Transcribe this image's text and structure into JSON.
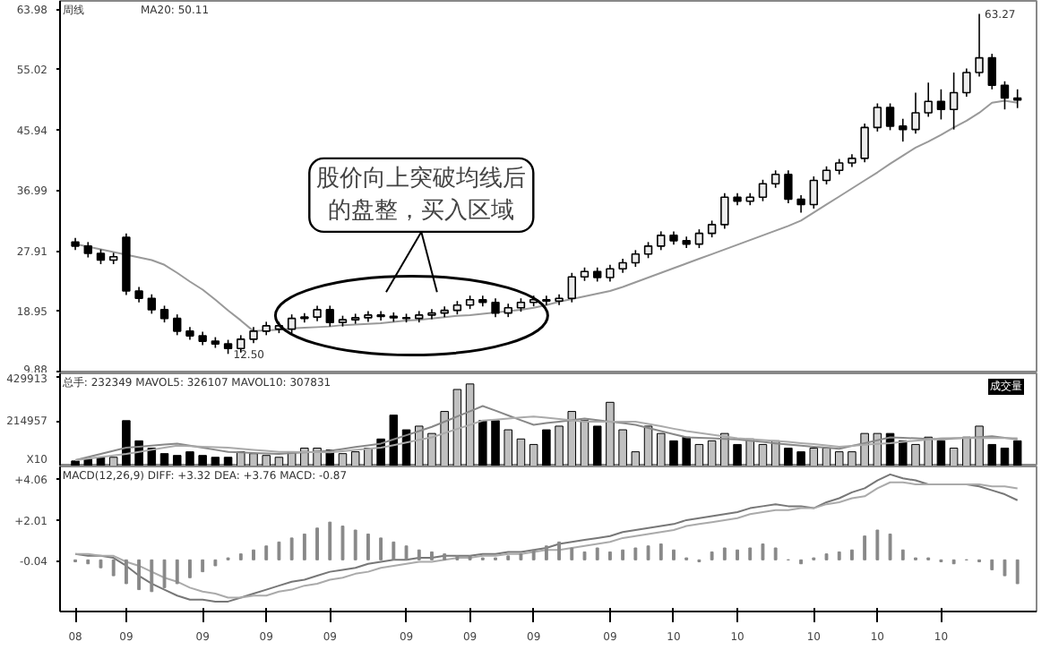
{
  "chart_data": [
    {
      "type": "candlestick",
      "title": "周线",
      "categories": [
        "08",
        null,
        null,
        null,
        "09",
        null,
        null,
        null,
        null,
        null,
        "09",
        null,
        null,
        null,
        null,
        "09",
        null,
        null,
        null,
        null,
        "09",
        null,
        null,
        null,
        null,
        null,
        "09",
        null,
        null,
        null,
        null,
        "09",
        null,
        null,
        null,
        null,
        "09",
        null,
        null,
        null,
        null,
        null,
        "09",
        null,
        null,
        null,
        null,
        "10",
        null,
        null,
        null,
        null,
        "10",
        null,
        null,
        null,
        null,
        null,
        "10",
        null,
        null,
        null,
        null,
        "10",
        null,
        null,
        null,
        null,
        "10",
        null,
        null,
        null,
        null,
        null,
        null
      ],
      "ohlc": [
        [
          29.2,
          29.8,
          28.0,
          28.6
        ],
        [
          28.6,
          29.2,
          26.9,
          27.5
        ],
        [
          27.5,
          28.1,
          25.9,
          26.5
        ],
        [
          26.5,
          27.6,
          25.9,
          27.0
        ],
        [
          29.9,
          30.5,
          21.3,
          21.9
        ],
        [
          21.9,
          22.5,
          20.2,
          20.8
        ],
        [
          20.8,
          21.4,
          18.5,
          19.1
        ],
        [
          19.1,
          19.7,
          17.2,
          17.8
        ],
        [
          17.8,
          18.4,
          15.3,
          15.9
        ],
        [
          15.9,
          16.5,
          14.6,
          15.2
        ],
        [
          15.2,
          15.8,
          13.8,
          14.4
        ],
        [
          14.4,
          15.0,
          13.4,
          14.0
        ],
        [
          14.0,
          14.6,
          12.5,
          13.3
        ],
        [
          13.3,
          15.3,
          12.7,
          14.7
        ],
        [
          14.7,
          16.5,
          14.1,
          15.9
        ],
        [
          15.9,
          17.3,
          15.3,
          16.7
        ],
        [
          16.2,
          17.3,
          15.6,
          16.7
        ],
        [
          16.2,
          18.4,
          15.6,
          17.8
        ],
        [
          17.8,
          18.6,
          17.2,
          18.0
        ],
        [
          18.0,
          19.7,
          17.4,
          19.1
        ],
        [
          19.1,
          19.7,
          16.6,
          17.2
        ],
        [
          17.2,
          18.2,
          16.6,
          17.6
        ],
        [
          17.6,
          18.5,
          17.0,
          17.9
        ],
        [
          17.9,
          18.9,
          17.3,
          18.3
        ],
        [
          18.3,
          18.9,
          17.5,
          18.1
        ],
        [
          18.1,
          18.7,
          17.3,
          17.9
        ],
        [
          17.9,
          18.5,
          17.2,
          17.8
        ],
        [
          17.8,
          18.9,
          17.2,
          18.3
        ],
        [
          18.3,
          19.2,
          17.7,
          18.6
        ],
        [
          18.6,
          19.6,
          18.0,
          19.0
        ],
        [
          19.0,
          20.4,
          18.4,
          19.8
        ],
        [
          19.8,
          21.2,
          19.2,
          20.6
        ],
        [
          20.6,
          21.2,
          19.6,
          20.2
        ],
        [
          20.2,
          20.8,
          18.0,
          18.6
        ],
        [
          18.6,
          20.0,
          18.0,
          19.4
        ],
        [
          19.4,
          20.8,
          18.8,
          20.2
        ],
        [
          20.2,
          21.2,
          19.6,
          20.6
        ],
        [
          20.6,
          21.2,
          19.8,
          20.4
        ],
        [
          20.4,
          21.4,
          19.8,
          20.8
        ],
        [
          20.8,
          24.6,
          20.2,
          24.0
        ],
        [
          24.0,
          25.4,
          23.4,
          24.8
        ],
        [
          24.8,
          25.4,
          23.3,
          23.9
        ],
        [
          23.9,
          25.8,
          23.3,
          25.2
        ],
        [
          25.2,
          26.7,
          24.6,
          26.1
        ],
        [
          26.1,
          28.0,
          25.5,
          27.4
        ],
        [
          27.4,
          29.2,
          26.8,
          28.6
        ],
        [
          28.6,
          30.8,
          28.0,
          30.2
        ],
        [
          30.2,
          30.8,
          28.8,
          29.4
        ],
        [
          29.4,
          30.0,
          28.3,
          28.9
        ],
        [
          28.9,
          31.1,
          28.3,
          30.5
        ],
        [
          30.5,
          32.4,
          29.9,
          31.8
        ],
        [
          31.8,
          36.5,
          31.2,
          35.9
        ],
        [
          35.9,
          36.5,
          34.7,
          35.3
        ],
        [
          35.3,
          36.5,
          34.7,
          35.9
        ],
        [
          35.9,
          38.5,
          35.3,
          37.9
        ],
        [
          37.9,
          39.9,
          37.3,
          39.3
        ],
        [
          39.3,
          39.9,
          35.0,
          35.6
        ],
        [
          35.6,
          36.2,
          33.6,
          34.8
        ],
        [
          34.8,
          39.0,
          34.2,
          38.4
        ],
        [
          38.4,
          40.5,
          37.8,
          39.9
        ],
        [
          39.9,
          41.6,
          39.3,
          41.0
        ],
        [
          41.0,
          42.3,
          40.4,
          41.7
        ],
        [
          41.7,
          46.9,
          41.1,
          46.3
        ],
        [
          46.3,
          49.9,
          45.7,
          49.3
        ],
        [
          49.3,
          49.9,
          45.9,
          46.5
        ],
        [
          46.5,
          47.6,
          44.2,
          46.0
        ],
        [
          46.0,
          51.5,
          45.4,
          48.5
        ],
        [
          48.5,
          53.0,
          47.9,
          50.2
        ],
        [
          50.2,
          52.0,
          47.5,
          49.0
        ],
        [
          49.0,
          54.5,
          46.0,
          51.5
        ],
        [
          51.5,
          55.1,
          50.9,
          54.5
        ],
        [
          54.5,
          63.27,
          53.9,
          56.7
        ],
        [
          56.7,
          57.3,
          52.0,
          52.6
        ],
        [
          52.6,
          53.2,
          49.0,
          50.7
        ],
        [
          50.7,
          52.0,
          49.2,
          50.4
        ]
      ],
      "colors": [
        "#000000",
        "#000000",
        "#000000",
        "#ececec",
        "#000000",
        "#000000",
        "#000000",
        "#000000",
        "#000000",
        "#000000",
        "#000000",
        "#000000",
        "#000000",
        "#ececec",
        "#ececec",
        "#ececec",
        "#ececec",
        "#ececec",
        "#ececec",
        "#ececec",
        "#000000",
        "#ececec",
        "#ececec",
        "#ececec",
        "#000000",
        "#000000",
        "#000000",
        "#ececec",
        "#ececec",
        "#ececec",
        "#ececec",
        "#ececec",
        "#000000",
        "#000000",
        "#ececec",
        "#ececec",
        "#ececec",
        "#000000",
        "#ececec",
        "#ececec",
        "#ececec",
        "#000000",
        "#ececec",
        "#ececec",
        "#ececec",
        "#ececec",
        "#ececec",
        "#000000",
        "#000000",
        "#ececec",
        "#ececec",
        "#ececec",
        "#000000",
        "#ececec",
        "#ececec",
        "#ececec",
        "#000000",
        "#000000",
        "#ececec",
        "#ececec",
        "#ececec",
        "#ececec",
        "#ececec",
        "#ececec",
        "#000000",
        "#000000",
        "#ececec",
        "#ececec",
        "#000000",
        "#ececec",
        "#ececec",
        "#ececec",
        "#000000",
        "#000000",
        "#000000"
      ],
      "series": [
        {
          "type": "line",
          "color": "#999999",
          "values": [
            28.9,
            28.5,
            28.1,
            27.7,
            27.3,
            26.9,
            26.5,
            25.8,
            24.6,
            23.3,
            22.1,
            20.6,
            19.0,
            17.5,
            15.9,
            16.0,
            16.1,
            16.3,
            16.4,
            16.5,
            16.6,
            16.8,
            16.9,
            17.0,
            17.1,
            17.3,
            17.5,
            17.6,
            17.8,
            18.0,
            18.2,
            18.3,
            18.5,
            18.7,
            18.9,
            19.1,
            19.4,
            19.8,
            20.3,
            20.7,
            21.1,
            21.5,
            21.9,
            22.5,
            23.2,
            23.9,
            24.6,
            25.3,
            26.0,
            26.7,
            27.4,
            28.1,
            28.8,
            29.5,
            30.2,
            30.9,
            31.6,
            32.4,
            33.6,
            34.8,
            36.0,
            37.2,
            38.4,
            39.6,
            40.9,
            42.1,
            43.3,
            44.2,
            45.2,
            46.3,
            47.3,
            48.5,
            50.0,
            50.3,
            50.0
          ]
        }
      ],
      "ylim": [
        9.6,
        65.2
      ],
      "yticks": [
        {
          "value": 9.88,
          "label": "9.88"
        },
        {
          "value": 18.95,
          "label": "18.95"
        },
        {
          "value": 27.91,
          "label": "27.91"
        },
        {
          "value": 36.99,
          "label": "36.99"
        },
        {
          "value": 45.94,
          "label": "45.94"
        },
        {
          "value": 55.02,
          "label": "55.02"
        },
        {
          "value": 63.98,
          "label": "63.98"
        }
      ],
      "tick_labels": "y",
      "annotations": [
        "MA20: 50.11",
        "股价向上突破均线后的盘整，买入区域",
        "12.50",
        "63.27"
      ]
    },
    {
      "type": "bar",
      "title": "总手: 232349 MAVOL5: 326107 MAVOL10: 307831",
      "categories": [
        "08",
        null,
        null,
        null,
        "09",
        null,
        null,
        null,
        null,
        null,
        "09",
        null,
        null,
        null,
        null,
        "09",
        null,
        null,
        null,
        null,
        "09",
        null,
        null,
        null,
        null,
        null,
        "09",
        null,
        null,
        null,
        null,
        "09",
        null,
        null,
        null,
        null,
        "09",
        null,
        null,
        null,
        null,
        null,
        "09",
        null,
        null,
        null,
        null,
        "10",
        null,
        null,
        null,
        null,
        "10",
        null,
        null,
        null,
        null,
        null,
        "10",
        null,
        null,
        null,
        null,
        "10",
        null,
        null,
        null,
        null,
        "10",
        null,
        null,
        null,
        null,
        null,
        null
      ],
      "values": [
        26400,
        35200,
        44000,
        44000,
        220000,
        123200,
        88000,
        61600,
        52800,
        70400,
        52800,
        44000,
        44000,
        70400,
        61600,
        52800,
        44000,
        70400,
        88000,
        88000,
        79200,
        61600,
        70400,
        88000,
        132000,
        246400,
        176000,
        193600,
        158400,
        264000,
        369600,
        396000,
        220000,
        220000,
        176000,
        132000,
        105600,
        176000,
        193600,
        264000,
        220000,
        193600,
        308000,
        176000,
        70400,
        193600,
        158400,
        123200,
        140800,
        105600,
        123200,
        158400,
        105600,
        132000,
        105600,
        123200,
        88000,
        70400,
        88000,
        88000,
        70400,
        70400,
        158400,
        158400,
        158400,
        123200,
        105600,
        140800,
        123200,
        88000,
        140800,
        193600,
        105600,
        88000,
        123200
      ],
      "colors": [
        "#000000",
        "#000000",
        "#000000",
        "#c0c0c0",
        "#000000",
        "#000000",
        "#000000",
        "#000000",
        "#000000",
        "#000000",
        "#000000",
        "#000000",
        "#000000",
        "#c0c0c0",
        "#c0c0c0",
        "#c0c0c0",
        "#c0c0c0",
        "#c0c0c0",
        "#c0c0c0",
        "#c0c0c0",
        "#000000",
        "#c0c0c0",
        "#c0c0c0",
        "#c0c0c0",
        "#000000",
        "#000000",
        "#000000",
        "#c0c0c0",
        "#c0c0c0",
        "#c0c0c0",
        "#c0c0c0",
        "#c0c0c0",
        "#000000",
        "#000000",
        "#c0c0c0",
        "#c0c0c0",
        "#c0c0c0",
        "#000000",
        "#c0c0c0",
        "#c0c0c0",
        "#c0c0c0",
        "#000000",
        "#c0c0c0",
        "#c0c0c0",
        "#c0c0c0",
        "#c0c0c0",
        "#c0c0c0",
        "#000000",
        "#000000",
        "#c0c0c0",
        "#c0c0c0",
        "#c0c0c0",
        "#000000",
        "#c0c0c0",
        "#c0c0c0",
        "#c0c0c0",
        "#000000",
        "#000000",
        "#c0c0c0",
        "#c0c0c0",
        "#c0c0c0",
        "#c0c0c0",
        "#c0c0c0",
        "#c0c0c0",
        "#000000",
        "#000000",
        "#c0c0c0",
        "#c0c0c0",
        "#000000",
        "#c0c0c0",
        "#c0c0c0",
        "#c0c0c0",
        "#000000",
        "#000000",
        "#000000"
      ],
      "series": [
        {
          "type": "line",
          "color": "#888888",
          "values": [
            30000,
            45000,
            60000,
            75000,
            90000,
            95000,
            100000,
            105000,
            110000,
            100000,
            90000,
            80000,
            70000,
            67500,
            65000,
            62500,
            60000,
            64000,
            68000,
            71000,
            75000,
            84000,
            93000,
            101000,
            110000,
            130000,
            150000,
            170000,
            190000,
            215000,
            240000,
            265000,
            290000,
            268000,
            245000,
            222000,
            200000,
            208000,
            215000,
            222000,
            230000,
            222000,
            215000,
            208000,
            200000,
            185000,
            170000,
            155000,
            140000,
            138000,
            135000,
            132000,
            130000,
            124000,
            118000,
            111000,
            105000,
            100000,
            95000,
            90000,
            85000,
            99000,
            112000,
            126000,
            140000,
            138000,
            135000,
            132000,
            130000,
            134000,
            138000,
            141000,
            145000,
            138000,
            130000
          ]
        },
        {
          "type": "line",
          "color": "#aaaaaa",
          "values": [
            30000,
            37500,
            45000,
            52500,
            60000,
            70000,
            80000,
            90000,
            100000,
            97500,
            95000,
            92500,
            90000,
            85000,
            80000,
            75000,
            70000,
            69500,
            69000,
            68500,
            68000,
            73500,
            79000,
            84500,
            90000,
            102500,
            115000,
            127500,
            140000,
            160000,
            180000,
            200000,
            220000,
            225000,
            230000,
            235000,
            240000,
            234000,
            228000,
            221000,
            215000,
            215000,
            215000,
            215000,
            215000,
            204000,
            193000,
            181000,
            170000,
            161000,
            153000,
            144000,
            135000,
            131000,
            127000,
            122000,
            118000,
            112000,
            107000,
            101000,
            95000,
            99000,
            104000,
            108000,
            112000,
            118000,
            124000,
            129000,
            135000,
            136000,
            136000,
            137000,
            138000,
            137000,
            135000
          ]
        }
      ],
      "ylim": [
        0,
        447000
      ],
      "yticks": [
        {
          "value": 0,
          "label": "X10"
        },
        {
          "value": 214957,
          "label": "214957"
        },
        {
          "value": 429913,
          "label": "429913"
        }
      ],
      "tick_labels": "y",
      "annotations": [
        "成交量"
      ]
    },
    {
      "type": "bar",
      "title": "MACD(12,26,9) DIFF: +3.32 DEA: +3.76 MACD: -0.87",
      "categories": [
        "08",
        null,
        null,
        null,
        "09",
        null,
        null,
        null,
        null,
        null,
        "09",
        null,
        null,
        null,
        null,
        "09",
        null,
        null,
        null,
        null,
        "09",
        null,
        null,
        null,
        null,
        null,
        "09",
        null,
        null,
        null,
        null,
        "09",
        null,
        null,
        null,
        null,
        "09",
        null,
        null,
        null,
        null,
        null,
        "09",
        null,
        null,
        null,
        null,
        "10",
        null,
        null,
        null,
        null,
        "10",
        null,
        null,
        null,
        null,
        null,
        "10",
        null,
        null,
        null,
        null,
        "10",
        null,
        null,
        null,
        null,
        "10",
        null,
        null,
        null,
        null,
        null,
        null
      ],
      "values": [
        -0.1,
        -0.2,
        -0.4,
        -0.8,
        -1.2,
        -1.5,
        -1.6,
        -1.4,
        -1.2,
        -0.9,
        -0.6,
        -0.3,
        0.1,
        0.3,
        0.5,
        0.7,
        0.9,
        1.1,
        1.3,
        1.6,
        1.9,
        1.7,
        1.5,
        1.3,
        1.1,
        0.9,
        0.7,
        0.5,
        0.4,
        0.3,
        0.2,
        0.2,
        0.1,
        0.1,
        0.2,
        0.3,
        0.5,
        0.7,
        0.9,
        0.6,
        0.4,
        0.6,
        0.4,
        0.5,
        0.6,
        0.7,
        0.8,
        0.5,
        0.1,
        -0.1,
        0.4,
        0.6,
        0.5,
        0.6,
        0.8,
        0.6,
        0.0,
        -0.2,
        0.1,
        0.3,
        0.4,
        0.5,
        1.2,
        1.5,
        1.3,
        0.5,
        0.1,
        0.1,
        -0.1,
        -0.2,
        0.0,
        -0.1,
        -0.5,
        -0.8,
        -1.2
      ],
      "color": "#888888",
      "series": [
        {
          "type": "line",
          "color": "#777777",
          "values": [
            0.3,
            0.2,
            0.2,
            0.1,
            -0.3,
            -0.8,
            -1.2,
            -1.5,
            -1.8,
            -2.0,
            -2.0,
            -2.1,
            -2.1,
            -1.9,
            -1.7,
            -1.5,
            -1.3,
            -1.1,
            -1.0,
            -0.8,
            -0.6,
            -0.5,
            -0.4,
            -0.2,
            -0.1,
            0.0,
            0.0,
            0.1,
            0.1,
            0.2,
            0.2,
            0.2,
            0.3,
            0.3,
            0.4,
            0.4,
            0.5,
            0.6,
            0.8,
            0.9,
            1.0,
            1.1,
            1.2,
            1.4,
            1.5,
            1.6,
            1.7,
            1.8,
            2.0,
            2.1,
            2.2,
            2.3,
            2.4,
            2.6,
            2.7,
            2.8,
            2.7,
            2.7,
            2.6,
            2.9,
            3.1,
            3.4,
            3.6,
            4.0,
            4.3,
            4.1,
            4.0,
            3.8,
            3.8,
            3.8,
            3.8,
            3.7,
            3.5,
            3.3,
            3.0
          ]
        },
        {
          "type": "line",
          "color": "#aaaaaa",
          "values": [
            0.3,
            0.3,
            0.2,
            0.2,
            -0.1,
            -0.3,
            -0.6,
            -0.9,
            -1.1,
            -1.4,
            -1.6,
            -1.7,
            -1.9,
            -1.9,
            -1.8,
            -1.8,
            -1.6,
            -1.5,
            -1.3,
            -1.2,
            -1.0,
            -0.9,
            -0.7,
            -0.6,
            -0.4,
            -0.3,
            -0.2,
            -0.1,
            -0.1,
            0.0,
            0.1,
            0.1,
            0.2,
            0.2,
            0.3,
            0.3,
            0.4,
            0.5,
            0.5,
            0.6,
            0.7,
            0.8,
            0.9,
            1.1,
            1.2,
            1.3,
            1.4,
            1.5,
            1.7,
            1.8,
            1.9,
            2.0,
            2.1,
            2.3,
            2.4,
            2.5,
            2.5,
            2.6,
            2.6,
            2.8,
            2.9,
            3.1,
            3.2,
            3.6,
            3.9,
            3.9,
            3.8,
            3.8,
            3.8,
            3.8,
            3.8,
            3.8,
            3.7,
            3.7,
            3.6
          ]
        }
      ],
      "ylim": [
        -2.6,
        4.7
      ],
      "yticks": [
        {
          "value": -0.04,
          "label": "-0.04"
        },
        {
          "value": 2.01,
          "label": "+2.01"
        },
        {
          "value": 4.06,
          "label": "+4.06"
        }
      ]
    }
  ]
}
